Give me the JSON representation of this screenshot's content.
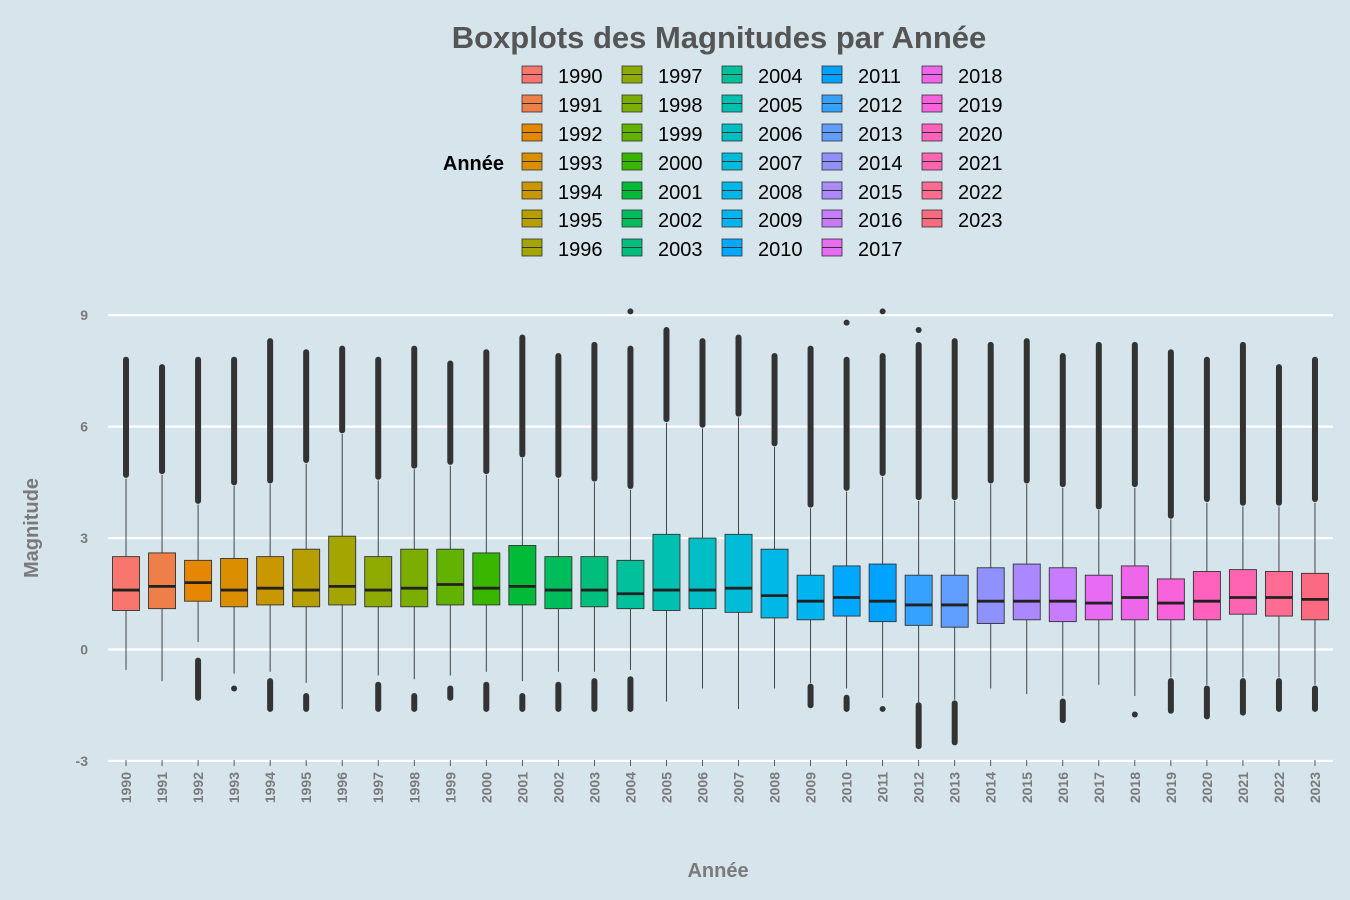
{
  "chart_data": {
    "type": "boxplot",
    "title": "Boxplots des Magnitudes par Année",
    "xlabel": "Année",
    "ylabel": "Magnitude",
    "ylim": [
      -3,
      9.5
    ],
    "yticks": [
      -3,
      0,
      3,
      6,
      9
    ],
    "grid": true,
    "legend": {
      "title": "Année",
      "position": "top",
      "columns": 5
    },
    "categories": [
      "1990",
      "1991",
      "1992",
      "1993",
      "1994",
      "1995",
      "1996",
      "1997",
      "1998",
      "1999",
      "2000",
      "2001",
      "2002",
      "2003",
      "2004",
      "2005",
      "2006",
      "2007",
      "2008",
      "2009",
      "2010",
      "2011",
      "2012",
      "2013",
      "2014",
      "2015",
      "2016",
      "2017",
      "2018",
      "2019",
      "2020",
      "2021",
      "2022",
      "2023"
    ],
    "colors": [
      "#F8766D",
      "#EF7F49",
      "#E58700",
      "#DA8F00",
      "#C99800",
      "#B79F00",
      "#A3A500",
      "#8FAA00",
      "#7CAE00",
      "#62B200",
      "#39B600",
      "#00BA38",
      "#00BD5C",
      "#00BF7D",
      "#00C19A",
      "#00C0AF",
      "#00BFC4",
      "#00BCD8",
      "#00B8E7",
      "#00B4F0",
      "#00A9FF",
      "#00A2FF",
      "#35A2FF",
      "#619CFF",
      "#8F91FF",
      "#AC88FF",
      "#C77CFF",
      "#E76BF3",
      "#F066EA",
      "#FA62DB",
      "#FF62BC",
      "#FF64B0",
      "#FF6C91",
      "#FB6A7E"
    ],
    "boxes": [
      {
        "year": "1990",
        "whisker_low": -0.55,
        "q1": 1.05,
        "median": 1.6,
        "q3": 2.5,
        "whisker_high": 4.6,
        "out_low": [],
        "out_high": [
          4.7,
          7.8
        ]
      },
      {
        "year": "1991",
        "whisker_low": -0.85,
        "q1": 1.1,
        "median": 1.7,
        "q3": 2.6,
        "whisker_high": 4.7,
        "out_low": [],
        "out_high": [
          4.8,
          7.6
        ]
      },
      {
        "year": "1992",
        "whisker_low": 0.2,
        "q1": 1.3,
        "median": 1.8,
        "q3": 2.4,
        "whisker_high": 3.9,
        "out_low": [
          -1.3,
          -0.3
        ],
        "out_high": [
          4.0,
          7.8
        ]
      },
      {
        "year": "1993",
        "whisker_low": -0.65,
        "q1": 1.15,
        "median": 1.6,
        "q3": 2.45,
        "whisker_high": 4.4,
        "out_low": [
          -1.05,
          -1.05
        ],
        "out_high": [
          4.5,
          7.8
        ]
      },
      {
        "year": "1994",
        "whisker_low": -0.6,
        "q1": 1.2,
        "median": 1.65,
        "q3": 2.5,
        "whisker_high": 4.45,
        "out_low": [
          -1.6,
          -0.85
        ],
        "out_high": [
          4.55,
          8.3
        ]
      },
      {
        "year": "1995",
        "whisker_low": -0.9,
        "q1": 1.15,
        "median": 1.6,
        "q3": 2.7,
        "whisker_high": 5.0,
        "out_low": [
          -1.6,
          -1.25
        ],
        "out_high": [
          5.1,
          8.0
        ]
      },
      {
        "year": "1996",
        "whisker_low": -1.6,
        "q1": 1.2,
        "median": 1.7,
        "q3": 3.05,
        "whisker_high": 5.8,
        "out_low": [],
        "out_high": [
          5.9,
          8.1
        ]
      },
      {
        "year": "1997",
        "whisker_low": -0.7,
        "q1": 1.15,
        "median": 1.6,
        "q3": 2.5,
        "whisker_high": 4.55,
        "out_low": [
          -1.6,
          -0.95
        ],
        "out_high": [
          4.65,
          7.8
        ]
      },
      {
        "year": "1998",
        "whisker_low": -0.8,
        "q1": 1.15,
        "median": 1.65,
        "q3": 2.7,
        "whisker_high": 4.85,
        "out_low": [
          -1.6,
          -1.25
        ],
        "out_high": [
          4.95,
          8.1
        ]
      },
      {
        "year": "1999",
        "whisker_low": -0.7,
        "q1": 1.2,
        "median": 1.75,
        "q3": 2.7,
        "whisker_high": 4.95,
        "out_low": [
          -1.3,
          -1.05
        ],
        "out_high": [
          5.05,
          7.7
        ]
      },
      {
        "year": "2000",
        "whisker_low": -0.6,
        "q1": 1.2,
        "median": 1.65,
        "q3": 2.6,
        "whisker_high": 4.7,
        "out_low": [
          -1.6,
          -0.95
        ],
        "out_high": [
          4.8,
          8.0
        ]
      },
      {
        "year": "2001",
        "whisker_low": -0.85,
        "q1": 1.2,
        "median": 1.7,
        "q3": 2.8,
        "whisker_high": 5.15,
        "out_low": [
          -1.6,
          -1.25
        ],
        "out_high": [
          5.25,
          8.4
        ]
      },
      {
        "year": "2002",
        "whisker_low": -0.6,
        "q1": 1.1,
        "median": 1.6,
        "q3": 2.5,
        "whisker_high": 4.6,
        "out_low": [
          -1.6,
          -0.95
        ],
        "out_high": [
          4.7,
          7.9
        ]
      },
      {
        "year": "2003",
        "whisker_low": -0.6,
        "q1": 1.15,
        "median": 1.6,
        "q3": 2.5,
        "whisker_high": 4.5,
        "out_low": [
          -1.6,
          -0.85
        ],
        "out_high": [
          4.6,
          8.2
        ]
      },
      {
        "year": "2004",
        "whisker_low": -0.55,
        "q1": 1.1,
        "median": 1.5,
        "q3": 2.4,
        "whisker_high": 4.3,
        "out_low": [
          -1.6,
          -0.8
        ],
        "out_high": [
          4.4,
          8.1,
          9.1
        ]
      },
      {
        "year": "2005",
        "whisker_low": -1.4,
        "q1": 1.05,
        "median": 1.6,
        "q3": 3.1,
        "whisker_high": 6.1,
        "out_low": [],
        "out_high": [
          6.2,
          8.6
        ]
      },
      {
        "year": "2006",
        "whisker_low": -1.05,
        "q1": 1.1,
        "median": 1.6,
        "q3": 3.0,
        "whisker_high": 5.95,
        "out_low": [],
        "out_high": [
          6.05,
          8.3
        ]
      },
      {
        "year": "2007",
        "whisker_low": -1.6,
        "q1": 1.0,
        "median": 1.65,
        "q3": 3.1,
        "whisker_high": 6.25,
        "out_low": [],
        "out_high": [
          6.35,
          8.4
        ]
      },
      {
        "year": "2008",
        "whisker_low": -1.05,
        "q1": 0.85,
        "median": 1.45,
        "q3": 2.7,
        "whisker_high": 5.45,
        "out_low": [],
        "out_high": [
          5.55,
          7.9
        ]
      },
      {
        "year": "2009",
        "whisker_low": -0.9,
        "q1": 0.8,
        "median": 1.3,
        "q3": 2.0,
        "whisker_high": 3.8,
        "out_low": [
          -1.5,
          -1.0
        ],
        "out_high": [
          3.9,
          8.1
        ]
      },
      {
        "year": "2010",
        "whisker_low": -1.05,
        "q1": 0.9,
        "median": 1.4,
        "q3": 2.25,
        "whisker_high": 4.25,
        "out_low": [
          -1.6,
          -1.3
        ],
        "out_high": [
          4.35,
          7.8,
          8.8
        ]
      },
      {
        "year": "2011",
        "whisker_low": -1.3,
        "q1": 0.75,
        "median": 1.3,
        "q3": 2.3,
        "whisker_high": 4.65,
        "out_low": [
          -1.6
        ],
        "out_high": [
          4.75,
          7.9,
          9.1
        ]
      },
      {
        "year": "2012",
        "whisker_low": -1.45,
        "q1": 0.65,
        "median": 1.2,
        "q3": 2.0,
        "whisker_high": 4.0,
        "out_low": [
          -2.6,
          -1.5
        ],
        "out_high": [
          4.1,
          8.2,
          8.6
        ]
      },
      {
        "year": "2013",
        "whisker_low": -1.35,
        "q1": 0.6,
        "median": 1.2,
        "q3": 2.0,
        "whisker_high": 4.0,
        "out_low": [
          -2.5,
          -1.45
        ],
        "out_high": [
          4.1,
          8.3
        ]
      },
      {
        "year": "2014",
        "whisker_low": -1.05,
        "q1": 0.7,
        "median": 1.3,
        "q3": 2.2,
        "whisker_high": 4.45,
        "out_low": [],
        "out_high": [
          4.55,
          8.2
        ]
      },
      {
        "year": "2015",
        "whisker_low": -1.2,
        "q1": 0.8,
        "median": 1.3,
        "q3": 2.3,
        "whisker_high": 4.45,
        "out_low": [],
        "out_high": [
          4.55,
          8.3
        ]
      },
      {
        "year": "2016",
        "whisker_low": -1.25,
        "q1": 0.75,
        "median": 1.3,
        "q3": 2.2,
        "whisker_high": 4.35,
        "out_low": [
          -1.9,
          -1.4
        ],
        "out_high": [
          4.45,
          7.9
        ]
      },
      {
        "year": "2017",
        "whisker_low": -0.95,
        "q1": 0.8,
        "median": 1.25,
        "q3": 2.0,
        "whisker_high": 3.75,
        "out_low": [],
        "out_high": [
          3.85,
          8.2
        ]
      },
      {
        "year": "2018",
        "whisker_low": -1.25,
        "q1": 0.8,
        "median": 1.4,
        "q3": 2.25,
        "whisker_high": 4.35,
        "out_low": [
          -1.75
        ],
        "out_high": [
          4.45,
          8.2
        ]
      },
      {
        "year": "2019",
        "whisker_low": -0.75,
        "q1": 0.8,
        "median": 1.25,
        "q3": 1.9,
        "whisker_high": 3.5,
        "out_low": [
          -1.65,
          -0.85
        ],
        "out_high": [
          3.6,
          8.0
        ]
      },
      {
        "year": "2020",
        "whisker_low": -0.95,
        "q1": 0.8,
        "median": 1.3,
        "q3": 2.1,
        "whisker_high": 3.95,
        "out_low": [
          -1.8,
          -1.05
        ],
        "out_high": [
          4.05,
          7.8
        ]
      },
      {
        "year": "2021",
        "whisker_low": -0.75,
        "q1": 0.95,
        "median": 1.4,
        "q3": 2.15,
        "whisker_high": 3.85,
        "out_low": [
          -1.7,
          -0.85
        ],
        "out_high": [
          3.95,
          8.2
        ]
      },
      {
        "year": "2022",
        "whisker_low": -0.75,
        "q1": 0.9,
        "median": 1.4,
        "q3": 2.1,
        "whisker_high": 3.85,
        "out_low": [
          -1.6,
          -0.85
        ],
        "out_high": [
          3.95,
          7.6
        ]
      },
      {
        "year": "2023",
        "whisker_low": -0.95,
        "q1": 0.8,
        "median": 1.35,
        "q3": 2.05,
        "whisker_high": 3.95,
        "out_low": [
          -1.6,
          -1.05
        ],
        "out_high": [
          4.05,
          7.8
        ]
      }
    ]
  }
}
